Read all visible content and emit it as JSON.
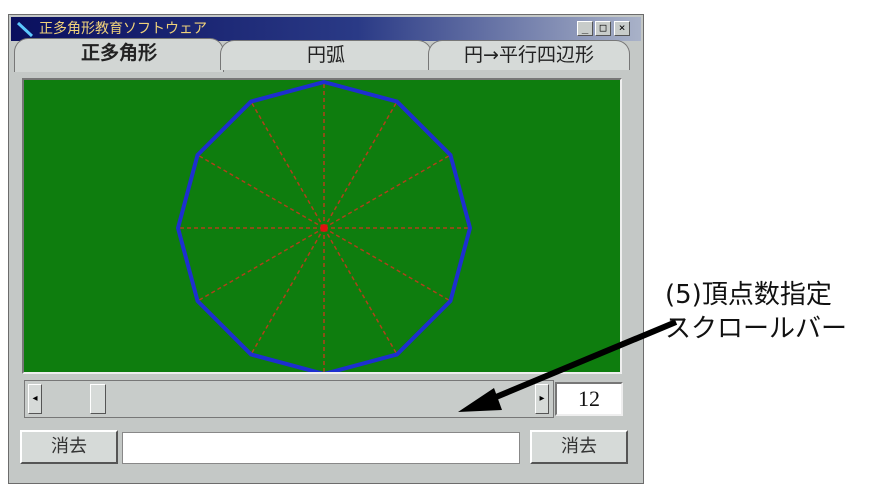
{
  "window": {
    "title": "正多角形教育ソフトウェア",
    "controls": {
      "minimize": "_",
      "maximize": "□",
      "close": "×"
    }
  },
  "tabs": [
    {
      "label": "正多角形",
      "active": true
    },
    {
      "label": "円弧",
      "active": false
    },
    {
      "label": "円→平行四辺形",
      "active": false
    }
  ],
  "canvas": {
    "background_color": "#0e7d0e",
    "polygon_color": "#1d2fd0",
    "radius_line_color": "#b0401a",
    "center_color": "#e01010",
    "vertex_count": 12
  },
  "scrollbar": {
    "left_arrow": "◂",
    "right_arrow": "▸",
    "position_fraction": 0.1
  },
  "vertex_value": "12",
  "buttons": {
    "clear_left": "消去",
    "clear_right": "消去"
  },
  "text_field": {
    "value": ""
  },
  "annotation": {
    "line1": "(5)頂点数指定",
    "line2": "スクロールバー"
  }
}
